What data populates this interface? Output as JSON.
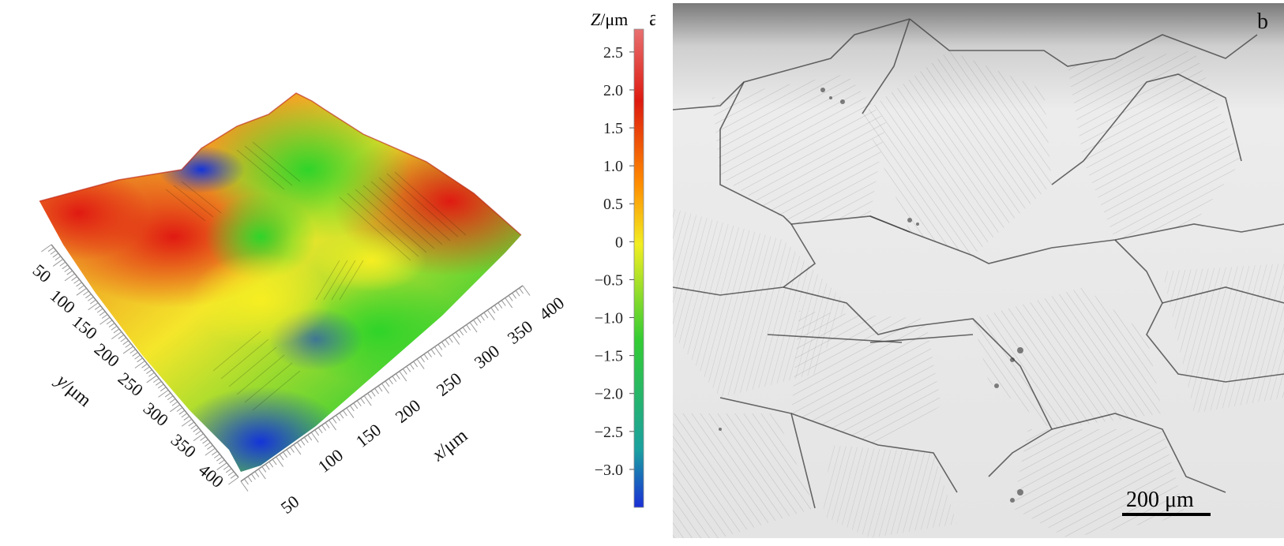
{
  "panel_a": {
    "letter": "a",
    "colorbar": {
      "title_var": "Z",
      "title_unit": "/μm",
      "ticks": [
        "2.5",
        "2.0",
        "1.5",
        "1.0",
        "0.5",
        "0",
        "−0.5",
        "−1.0",
        "−1.5",
        "−2.0",
        "−2.5",
        "−3.0"
      ],
      "tick_values": [
        2.5,
        2.0,
        1.5,
        1.0,
        0.5,
        0,
        -0.5,
        -1.0,
        -1.5,
        -2.0,
        -2.5,
        -3.0
      ],
      "range": [
        -3.5,
        2.8
      ],
      "colors": [
        "#1a2fd6",
        "#1aa0a0",
        "#33cc33",
        "#f2ee22",
        "#ff8a00",
        "#dd1a10",
        "#e46060"
      ]
    },
    "x_axis": {
      "label_var": "x",
      "label_unit": "/μm",
      "ticks": [
        "50",
        "100",
        "150",
        "200",
        "250",
        "300",
        "350",
        "400"
      ]
    },
    "y_axis": {
      "label_var": "y",
      "label_unit": "/μm",
      "ticks": [
        "50",
        "100",
        "150",
        "200",
        "250",
        "300",
        "350",
        "400"
      ]
    }
  },
  "panel_b": {
    "letter": "b",
    "scale_bar_label": "200 μm"
  }
}
